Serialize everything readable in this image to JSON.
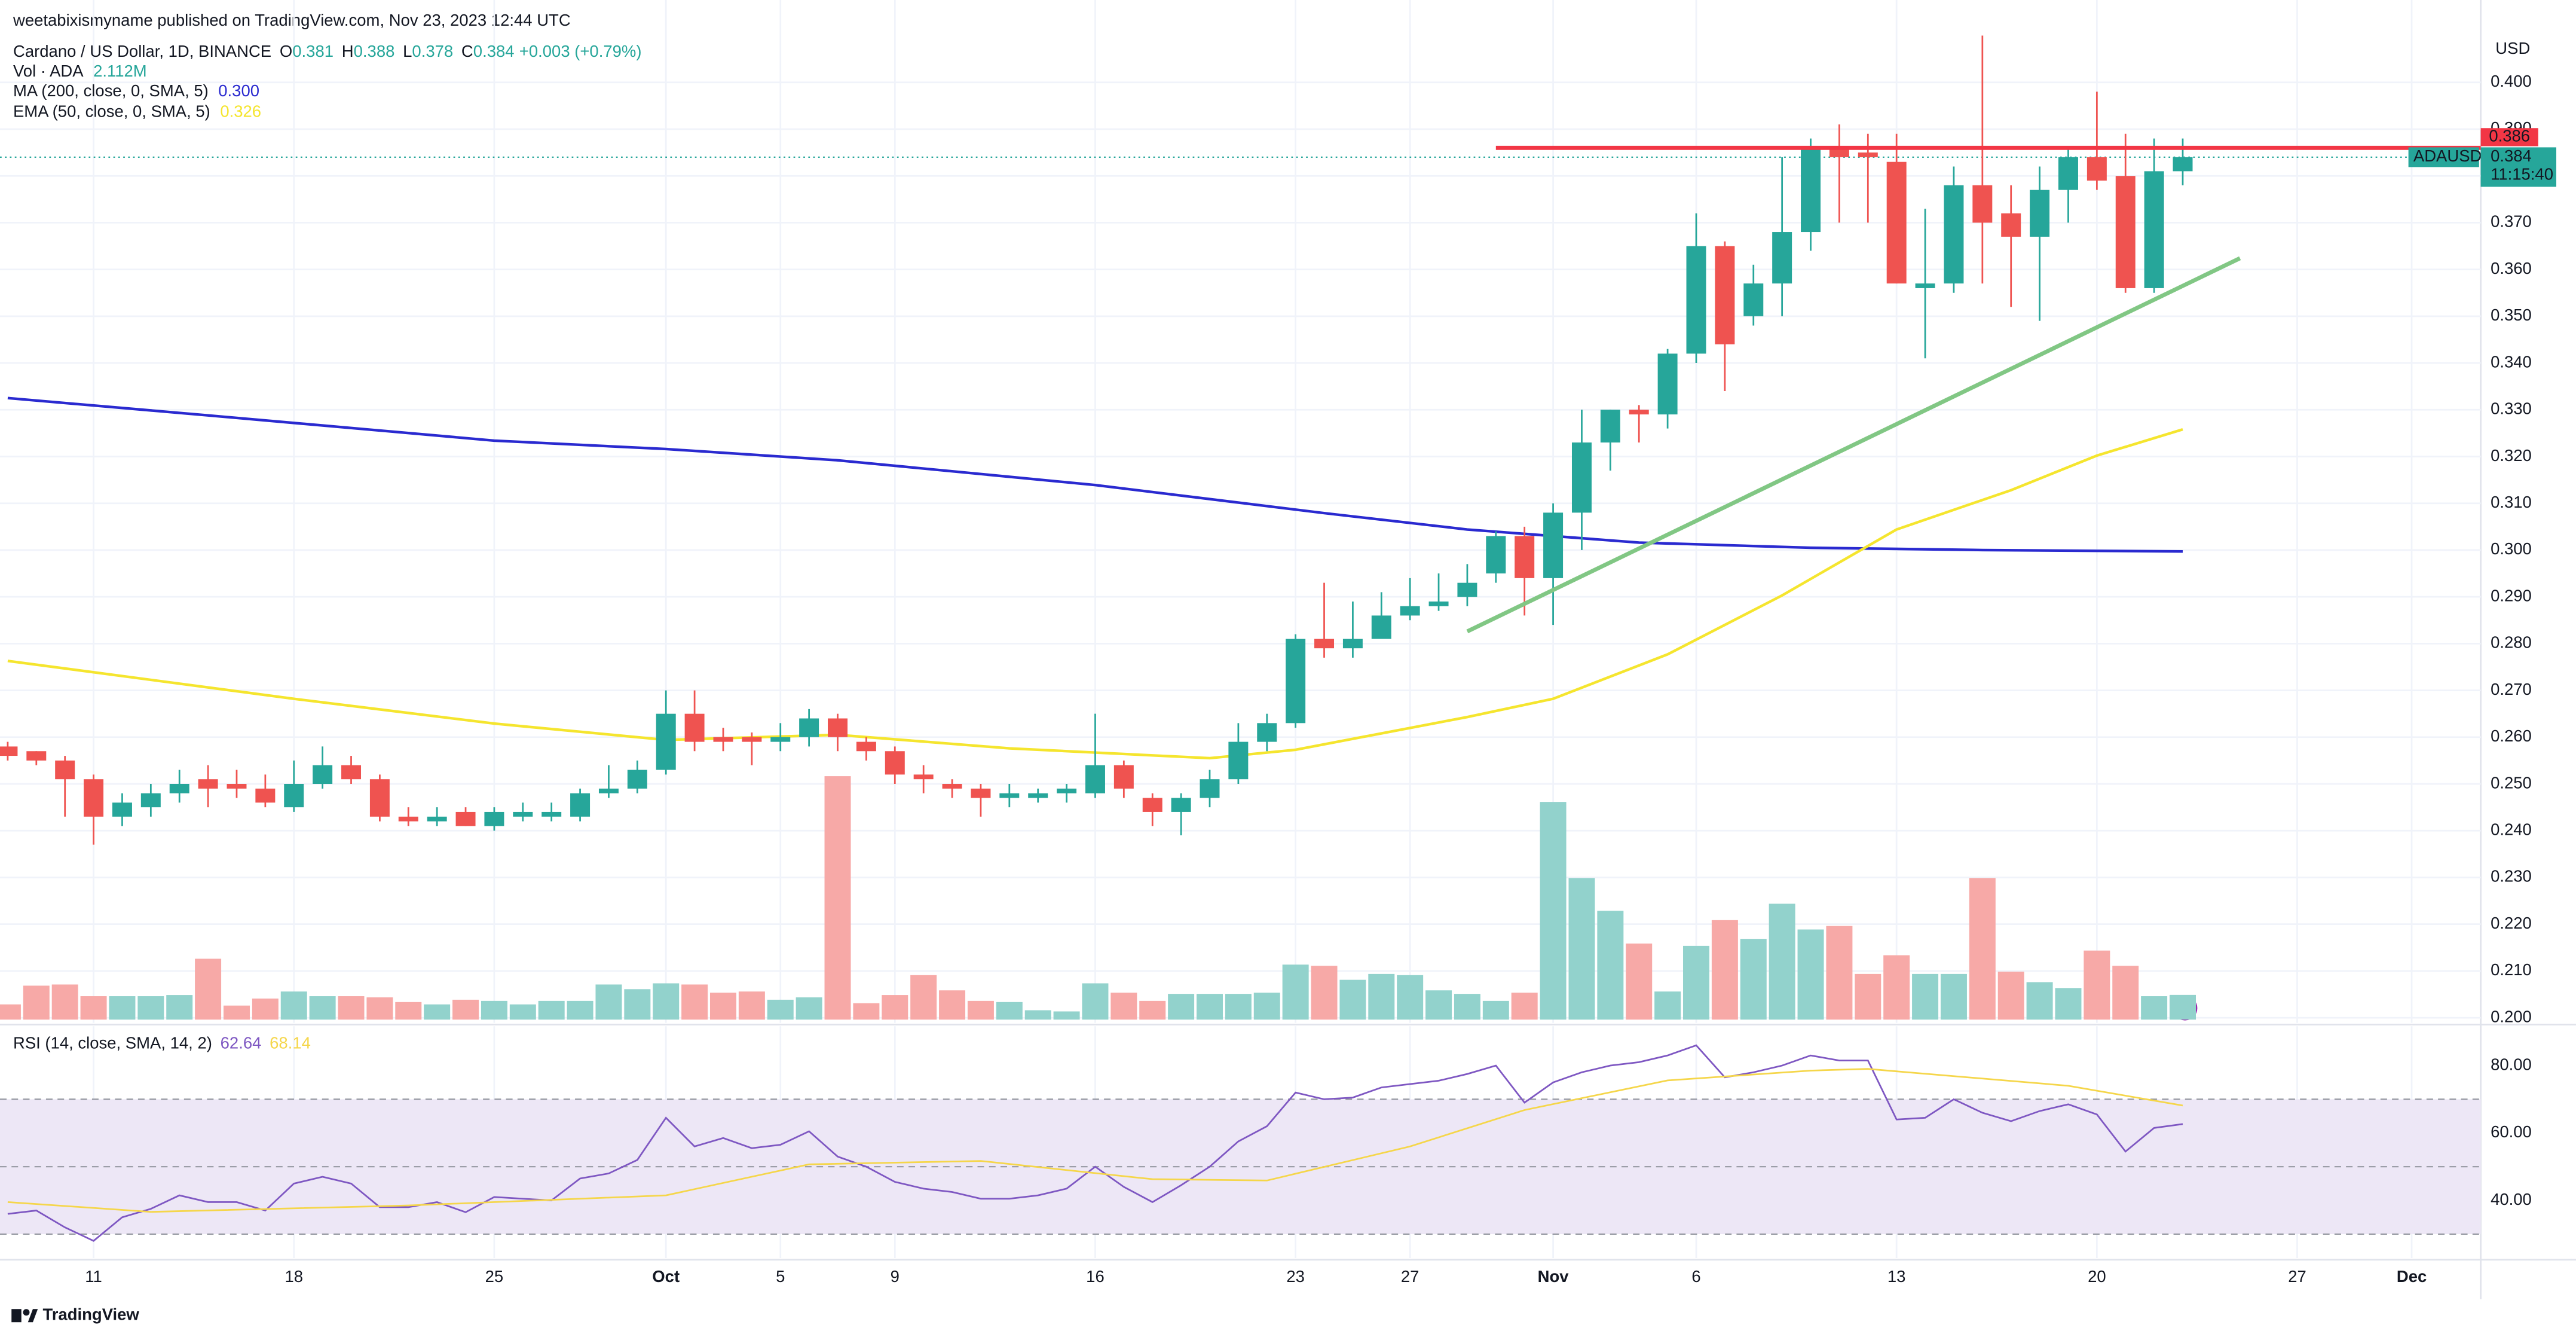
{
  "header": {
    "published": "weetabixismyname published on TradingView.com, Nov 23, 2023 12:44 UTC",
    "brand": "TradingView"
  },
  "chart_data": [
    {
      "type": "candlestick",
      "title": "Cardano / US Dollar, 1D, BINANCE",
      "ohlc_labels": [
        {
          "key": "O",
          "value": "0.381"
        },
        {
          "key": "H",
          "value": "0.388"
        },
        {
          "key": "L",
          "value": "0.378"
        },
        {
          "key": "C",
          "value": "0.384"
        }
      ],
      "change": "+0.003 (+0.79%)",
      "currency": "USD",
      "up_color": "#26a69a",
      "down_color": "#ef5350",
      "grid": true,
      "x": [
        "2023-09-08",
        "2023-09-09",
        "2023-09-10",
        "2023-09-11",
        "2023-09-12",
        "2023-09-13",
        "2023-09-14",
        "2023-09-15",
        "2023-09-16",
        "2023-09-17",
        "2023-09-18",
        "2023-09-19",
        "2023-09-20",
        "2023-09-21",
        "2023-09-22",
        "2023-09-23",
        "2023-09-24",
        "2023-09-25",
        "2023-09-26",
        "2023-09-27",
        "2023-09-28",
        "2023-09-29",
        "2023-09-30",
        "2023-10-01",
        "2023-10-02",
        "2023-10-03",
        "2023-10-04",
        "2023-10-05",
        "2023-10-06",
        "2023-10-07",
        "2023-10-08",
        "2023-10-09",
        "2023-10-10",
        "2023-10-11",
        "2023-10-12",
        "2023-10-13",
        "2023-10-14",
        "2023-10-15",
        "2023-10-16",
        "2023-10-17",
        "2023-10-18",
        "2023-10-19",
        "2023-10-20",
        "2023-10-21",
        "2023-10-22",
        "2023-10-23",
        "2023-10-24",
        "2023-10-25",
        "2023-10-26",
        "2023-10-27",
        "2023-10-28",
        "2023-10-29",
        "2023-10-30",
        "2023-10-31",
        "2023-11-01",
        "2023-11-02",
        "2023-11-03",
        "2023-11-04",
        "2023-11-05",
        "2023-11-06",
        "2023-11-07",
        "2023-11-08",
        "2023-11-09",
        "2023-11-10",
        "2023-11-11",
        "2023-11-12",
        "2023-11-13",
        "2023-11-14",
        "2023-11-15",
        "2023-11-16",
        "2023-11-17",
        "2023-11-18",
        "2023-11-19",
        "2023-11-20",
        "2023-11-21",
        "2023-11-22",
        "2023-11-23"
      ],
      "open": [
        0.258,
        0.257,
        0.255,
        0.251,
        0.243,
        0.245,
        0.248,
        0.251,
        0.25,
        0.249,
        0.245,
        0.25,
        0.254,
        0.251,
        0.243,
        0.242,
        0.244,
        0.241,
        0.243,
        0.243,
        0.243,
        0.248,
        0.249,
        0.253,
        0.265,
        0.26,
        0.26,
        0.259,
        0.26,
        0.264,
        0.259,
        0.257,
        0.252,
        0.25,
        0.249,
        0.247,
        0.247,
        0.248,
        0.248,
        0.254,
        0.247,
        0.244,
        0.247,
        0.251,
        0.259,
        0.263,
        0.281,
        0.279,
        0.281,
        0.286,
        0.288,
        0.29,
        0.295,
        0.303,
        0.294,
        0.308,
        0.323,
        0.33,
        0.329,
        0.342,
        0.365,
        0.35,
        0.357,
        0.368,
        0.386,
        0.385,
        0.383,
        0.356,
        0.357,
        0.378,
        0.372,
        0.367,
        0.377,
        0.384,
        0.38,
        0.356,
        0.381
      ],
      "high": [
        0.259,
        0.257,
        0.256,
        0.252,
        0.248,
        0.25,
        0.253,
        0.254,
        0.253,
        0.252,
        0.255,
        0.258,
        0.256,
        0.252,
        0.245,
        0.245,
        0.245,
        0.245,
        0.246,
        0.246,
        0.249,
        0.254,
        0.255,
        0.27,
        0.27,
        0.262,
        0.261,
        0.263,
        0.266,
        0.265,
        0.26,
        0.258,
        0.254,
        0.251,
        0.25,
        0.25,
        0.249,
        0.25,
        0.265,
        0.255,
        0.248,
        0.248,
        0.253,
        0.263,
        0.265,
        0.282,
        0.293,
        0.289,
        0.291,
        0.294,
        0.295,
        0.297,
        0.304,
        0.305,
        0.31,
        0.33,
        0.33,
        0.331,
        0.343,
        0.372,
        0.366,
        0.361,
        0.384,
        0.388,
        0.391,
        0.389,
        0.389,
        0.373,
        0.382,
        0.41,
        0.378,
        0.382,
        0.386,
        0.398,
        0.389,
        0.388,
        0.388
      ],
      "low": [
        0.255,
        0.254,
        0.243,
        0.237,
        0.241,
        0.243,
        0.246,
        0.245,
        0.247,
        0.245,
        0.244,
        0.249,
        0.25,
        0.242,
        0.241,
        0.241,
        0.241,
        0.24,
        0.242,
        0.242,
        0.242,
        0.247,
        0.248,
        0.252,
        0.257,
        0.257,
        0.254,
        0.257,
        0.258,
        0.257,
        0.255,
        0.25,
        0.248,
        0.247,
        0.243,
        0.245,
        0.246,
        0.246,
        0.247,
        0.247,
        0.241,
        0.239,
        0.245,
        0.25,
        0.257,
        0.262,
        0.277,
        0.277,
        0.281,
        0.285,
        0.287,
        0.288,
        0.293,
        0.286,
        0.284,
        0.3,
        0.317,
        0.323,
        0.326,
        0.34,
        0.334,
        0.348,
        0.35,
        0.364,
        0.37,
        0.37,
        0.357,
        0.341,
        0.355,
        0.357,
        0.352,
        0.349,
        0.37,
        0.377,
        0.355,
        0.355,
        0.378
      ],
      "close": [
        0.256,
        0.255,
        0.251,
        0.243,
        0.246,
        0.248,
        0.25,
        0.249,
        0.249,
        0.246,
        0.25,
        0.254,
        0.251,
        0.243,
        0.242,
        0.243,
        0.241,
        0.244,
        0.244,
        0.244,
        0.248,
        0.249,
        0.253,
        0.265,
        0.259,
        0.259,
        0.259,
        0.26,
        0.264,
        0.26,
        0.257,
        0.252,
        0.251,
        0.249,
        0.247,
        0.248,
        0.248,
        0.249,
        0.254,
        0.249,
        0.244,
        0.247,
        0.251,
        0.259,
        0.263,
        0.281,
        0.279,
        0.281,
        0.286,
        0.288,
        0.289,
        0.293,
        0.303,
        0.294,
        0.308,
        0.323,
        0.33,
        0.329,
        0.342,
        0.365,
        0.344,
        0.357,
        0.368,
        0.386,
        0.384,
        0.384,
        0.357,
        0.357,
        0.378,
        0.37,
        0.367,
        0.377,
        0.384,
        0.379,
        0.356,
        0.381,
        0.384
      ],
      "ylim": [
        0.1989,
        0.4148
      ],
      "yticks": [
        {
          "value": 0.2,
          "label": "0.200"
        },
        {
          "value": 0.21,
          "label": "0.210"
        },
        {
          "value": 0.22,
          "label": "0.220"
        },
        {
          "value": 0.23,
          "label": "0.230"
        },
        {
          "value": 0.24,
          "label": "0.240"
        },
        {
          "value": 0.25,
          "label": "0.250"
        },
        {
          "value": 0.26,
          "label": "0.260"
        },
        {
          "value": 0.27,
          "label": "0.270"
        },
        {
          "value": 0.28,
          "label": "0.280"
        },
        {
          "value": 0.29,
          "label": "0.290"
        },
        {
          "value": 0.3,
          "label": "0.300"
        },
        {
          "value": 0.31,
          "label": "0.310"
        },
        {
          "value": 0.32,
          "label": "0.320"
        },
        {
          "value": 0.33,
          "label": "0.330"
        },
        {
          "value": 0.34,
          "label": "0.340"
        },
        {
          "value": 0.35,
          "label": "0.350"
        },
        {
          "value": 0.36,
          "label": "0.360"
        },
        {
          "value": 0.37,
          "label": "0.370"
        },
        {
          "value": 0.38,
          "label": "0.380"
        },
        {
          "value": 0.39,
          "label": "0.390"
        },
        {
          "value": 0.4,
          "label": "0.400"
        }
      ],
      "xticks": [
        {
          "value": "2023-09-11",
          "label": "11"
        },
        {
          "value": "2023-09-18",
          "label": "18"
        },
        {
          "value": "2023-09-25",
          "label": "25"
        },
        {
          "value": "2023-10-01",
          "label": "Oct"
        },
        {
          "value": "2023-10-05",
          "label": "5"
        },
        {
          "value": "2023-10-09",
          "label": "9"
        },
        {
          "value": "2023-10-16",
          "label": "16"
        },
        {
          "value": "2023-10-23",
          "label": "23"
        },
        {
          "value": "2023-10-27",
          "label": "27"
        },
        {
          "value": "2023-11-01",
          "label": "Nov"
        },
        {
          "value": "2023-11-06",
          "label": "6"
        },
        {
          "value": "2023-11-13",
          "label": "13"
        },
        {
          "value": "2023-11-20",
          "label": "20"
        },
        {
          "value": "2023-11-27",
          "label": "27"
        },
        {
          "value": "2023-12-01",
          "label": "Dec"
        }
      ],
      "overlays": [
        {
          "name": "MA (200, close, 0, SMA, 5)",
          "value_label": "0.300",
          "color": "#2a2ad0",
          "x": [
            "2023-09-08",
            "2023-09-15",
            "2023-09-25",
            "2023-10-01",
            "2023-10-07",
            "2023-10-16",
            "2023-10-24",
            "2023-10-29",
            "2023-11-04",
            "2023-11-10",
            "2023-11-16",
            "2023-11-23"
          ],
          "values": [
            0.3325,
            0.3288,
            0.3234,
            0.3216,
            0.3192,
            0.3139,
            0.3079,
            0.3044,
            0.3016,
            0.3005,
            0.3,
            0.2997
          ]
        },
        {
          "name": "EMA (50, close, 0, SMA, 5)",
          "value_label": "0.326",
          "color": "#f5e52e",
          "x": [
            "2023-09-08",
            "2023-09-18",
            "2023-09-25",
            "2023-10-01",
            "2023-10-07",
            "2023-10-13",
            "2023-10-20",
            "2023-10-23",
            "2023-10-29",
            "2023-11-01",
            "2023-11-05",
            "2023-11-09",
            "2023-11-13",
            "2023-11-17",
            "2023-11-20",
            "2023-11-23"
          ],
          "values": [
            0.2763,
            0.2682,
            0.2629,
            0.2594,
            0.2605,
            0.2576,
            0.2555,
            0.2573,
            0.2643,
            0.2682,
            0.2777,
            0.2903,
            0.3044,
            0.3128,
            0.3202,
            0.3258
          ]
        }
      ],
      "trendline": {
        "color": "#81c784",
        "x": [
          "2023-10-29",
          "2023-11-25"
        ],
        "values": [
          0.2826,
          0.3624
        ]
      },
      "level": {
        "value": 0.386,
        "label": "0.386",
        "start": "2023-10-30",
        "color": "#f23645"
      },
      "last_price": {
        "symbol": "ADAUSD",
        "value": 0.384,
        "label": "0.384",
        "countdown": "11:15:40"
      }
    },
    {
      "type": "bar",
      "name": "Vol · ADA",
      "value_label": "2.112M",
      "up_color": "#92d2cc",
      "down_color": "#f7a9a7",
      "values": [
        1.3,
        2.9,
        3.0,
        2.0,
        2.0,
        2.0,
        2.1,
        5.2,
        1.2,
        1.8,
        2.4,
        2.0,
        2.0,
        1.9,
        1.5,
        1.3,
        1.7,
        1.6,
        1.3,
        1.6,
        1.6,
        3.0,
        2.6,
        3.1,
        3.0,
        2.3,
        2.4,
        1.7,
        1.9,
        20.8,
        1.4,
        2.1,
        3.8,
        2.5,
        1.6,
        1.5,
        0.8,
        0.7,
        3.1,
        2.3,
        1.6,
        2.2,
        2.2,
        2.2,
        2.3,
        4.7,
        4.6,
        3.4,
        3.9,
        3.8,
        2.5,
        2.2,
        1.6,
        2.3,
        18.6,
        12.1,
        9.3,
        6.5,
        2.4,
        6.3,
        8.5,
        6.9,
        9.9,
        7.7,
        8.0,
        3.9,
        5.5,
        3.9,
        3.9,
        12.1,
        4.1,
        3.2,
        2.7,
        5.9,
        4.6,
        2.0,
        2.112
      ],
      "ylim": [
        0,
        86
      ]
    },
    {
      "type": "line",
      "title": "RSI (14, close, SMA, 14, 2)",
      "series": [
        {
          "value_label": "62.64",
          "color": "#7e57c2",
          "values": [
            36,
            37,
            32,
            28,
            35,
            37.5,
            41.5,
            39.5,
            39.5,
            37,
            45,
            47,
            45,
            38,
            38,
            39.5,
            36.5,
            41,
            40.5,
            40,
            46.5,
            48,
            52,
            64.5,
            56,
            58.5,
            55.5,
            56.5,
            60.5,
            53,
            50,
            45.5,
            43.5,
            42.5,
            40.5,
            40.5,
            41.5,
            43.5,
            50,
            44,
            39.5,
            44.5,
            50,
            57.5,
            62,
            72,
            70,
            70.5,
            73.5,
            74.5,
            75.5,
            77.5,
            80,
            69,
            75,
            78,
            80,
            81,
            83,
            86,
            76.5,
            78,
            80,
            83,
            81.5,
            81.5,
            64,
            64.5,
            70,
            66,
            63.5,
            66.5,
            68.5,
            65.5,
            54.5,
            61.5,
            62.64
          ]
        },
        {
          "value_label": "68.14",
          "color": "#f5d64a",
          "x": [
            "2023-09-08",
            "2023-09-13",
            "2023-09-22",
            "2023-10-01",
            "2023-10-06",
            "2023-10-12",
            "2023-10-18",
            "2023-10-22",
            "2023-10-27",
            "2023-10-31",
            "2023-11-05",
            "2023-11-10",
            "2023-11-12",
            "2023-11-19",
            "2023-11-23"
          ],
          "values": [
            39.5,
            36.6,
            38.5,
            41.5,
            50.7,
            51.7,
            46.3,
            45.9,
            56,
            66.8,
            75.6,
            78.5,
            79,
            74,
            68.14
          ]
        }
      ],
      "band": [
        30,
        70
      ],
      "band_color": "#ede7f6",
      "levels": [
        70,
        50,
        30
      ],
      "ylim": [
        22.9,
        90.7
      ],
      "yticks": [
        {
          "value": 80,
          "label": "80.00"
        },
        {
          "value": 60,
          "label": "60.00"
        },
        {
          "value": 40,
          "label": "40.00"
        }
      ]
    }
  ]
}
